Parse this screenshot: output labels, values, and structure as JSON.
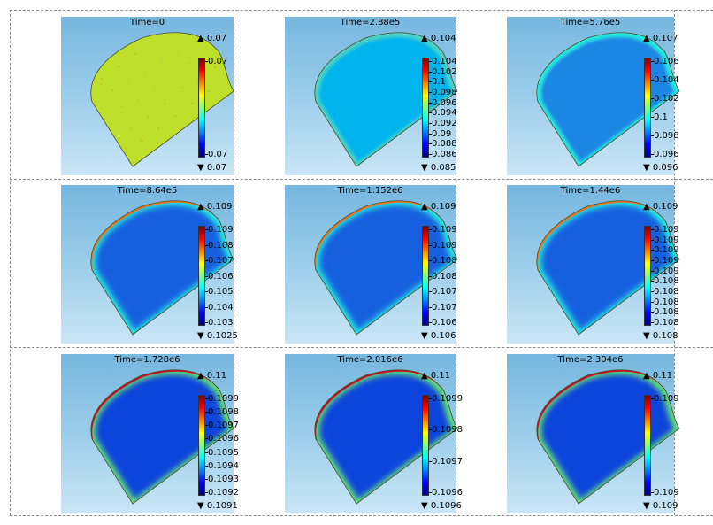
{
  "colors": {
    "rainbow": [
      "#00007f",
      "#0000ff",
      "#0080ff",
      "#00ffff",
      "#80ff80",
      "#ffff00",
      "#ff8000",
      "#ff0000",
      "#7f0000"
    ],
    "fill_uniform": "#bfe02a",
    "fill_t1": "#00b4ee",
    "fill_t2": "#1a86e4",
    "fill_blue": "#1460e0",
    "fill_deep": "#0f44dc",
    "edge_t1": "#4ad2c8",
    "edge_cyan": "#27e8e0",
    "edge_green": "#66e07a",
    "rim_orange": "#ff7a10",
    "rim_red": "#d80f0f",
    "outline": "#4b4b2a"
  },
  "panels": [
    {
      "title": "Time=0",
      "max": "0.07",
      "min": "0.07",
      "ticks": [
        "0.07",
        "0.07"
      ],
      "fill": "fill_uniform",
      "edge": "fill_uniform",
      "rim": "none",
      "speckle": true
    },
    {
      "title": "Time=2.88e5",
      "max": "0.104",
      "min": "0.085",
      "ticks": [
        "0.104",
        "0.102",
        "0.1",
        "0.098",
        "0.096",
        "0.094",
        "0.092",
        "0.09",
        "0.088",
        "0.086"
      ],
      "fill": "fill_t1",
      "edge": "edge_t1",
      "rim": "none",
      "speckle": false
    },
    {
      "title": "Time=5.76e5",
      "max": "0.107",
      "min": "0.096",
      "ticks": [
        "0.106",
        "0.104",
        "0.102",
        "0.1",
        "0.098",
        "0.096"
      ],
      "fill": "fill_t2",
      "edge": "edge_cyan",
      "rim": "none",
      "speckle": false
    },
    {
      "title": "Time=8.64e5",
      "max": "0.109",
      "min": "0.1025",
      "ticks": [
        "0.109",
        "0.108",
        "0.107",
        "0.106",
        "0.105",
        "0.104",
        "0.103"
      ],
      "fill": "fill_blue",
      "edge": "edge_cyan",
      "rim": "orange",
      "speckle": false
    },
    {
      "title": "Time=1.152e6",
      "max": "0.109",
      "min": "0.106",
      "ticks": [
        "0.109",
        "0.109",
        "0.108",
        "0.108",
        "0.107",
        "0.107",
        "0.106"
      ],
      "fill": "fill_blue",
      "edge": "edge_cyan",
      "rim": "orange",
      "speckle": false
    },
    {
      "title": "Time=1.44e6",
      "max": "0.109",
      "min": "0.108",
      "ticks": [
        "0.109",
        "0.109",
        "0.109",
        "0.109",
        "0.109",
        "0.108",
        "0.108",
        "0.108",
        "0.108",
        "0.108"
      ],
      "fill": "fill_blue",
      "edge": "edge_cyan",
      "rim": "orange",
      "speckle": false
    },
    {
      "title": "Time=1.728e6",
      "max": "0.11",
      "min": "0.1091",
      "ticks": [
        "0.1099",
        "0.1098",
        "0.1097",
        "0.1096",
        "0.1095",
        "0.1094",
        "0.1093",
        "0.1092"
      ],
      "fill": "fill_deep",
      "edge": "edge_green",
      "rim": "red",
      "speckle": false
    },
    {
      "title": "Time=2.016e6",
      "max": "0.11",
      "min": "0.1096",
      "ticks": [
        "0.1099",
        "0.1098",
        "0.1097",
        "0.1096"
      ],
      "fill": "fill_deep",
      "edge": "edge_green",
      "rim": "red",
      "speckle": false
    },
    {
      "title": "Time=2.304e6",
      "max": "0.11",
      "min": "0.109",
      "ticks": [
        "0.109",
        "0.109"
      ],
      "fill": "fill_deep",
      "edge": "edge_green",
      "rim": "red",
      "speckle": false
    }
  ]
}
